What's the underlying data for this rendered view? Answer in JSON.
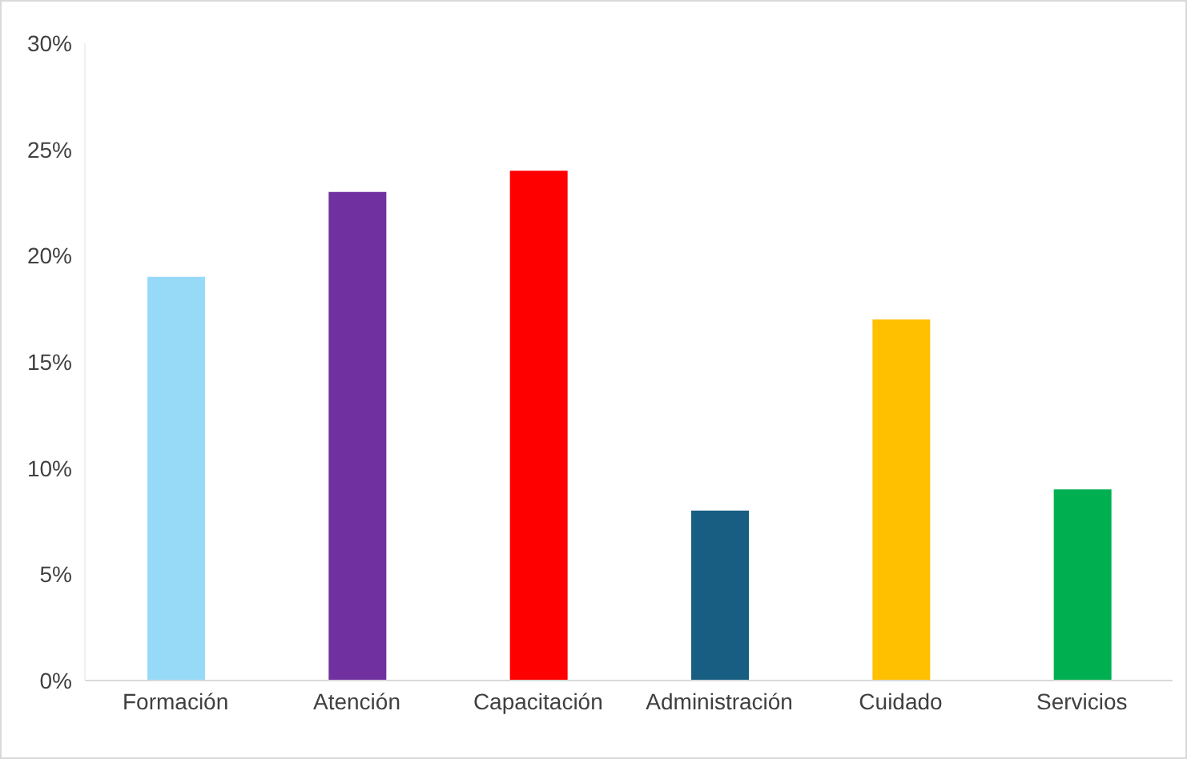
{
  "chart_data": {
    "type": "bar",
    "categories": [
      "Formación",
      "Atención",
      "Capacitación",
      "Administración",
      "Cuidado",
      "Servicios"
    ],
    "values": [
      19,
      23,
      24,
      8,
      17,
      9
    ],
    "colors": [
      "#97daf7",
      "#7030a0",
      "#ff0000",
      "#175e82",
      "#ffc000",
      "#00b050"
    ],
    "ylim": [
      0,
      30
    ],
    "yticks": [
      {
        "value": 0,
        "label": "0%"
      },
      {
        "value": 5,
        "label": "5%"
      },
      {
        "value": 10,
        "label": "10%"
      },
      {
        "value": 15,
        "label": "15%"
      },
      {
        "value": 20,
        "label": "20%"
      },
      {
        "value": 25,
        "label": "25%"
      },
      {
        "value": 30,
        "label": "30%"
      }
    ],
    "grid": false,
    "legend": false
  }
}
